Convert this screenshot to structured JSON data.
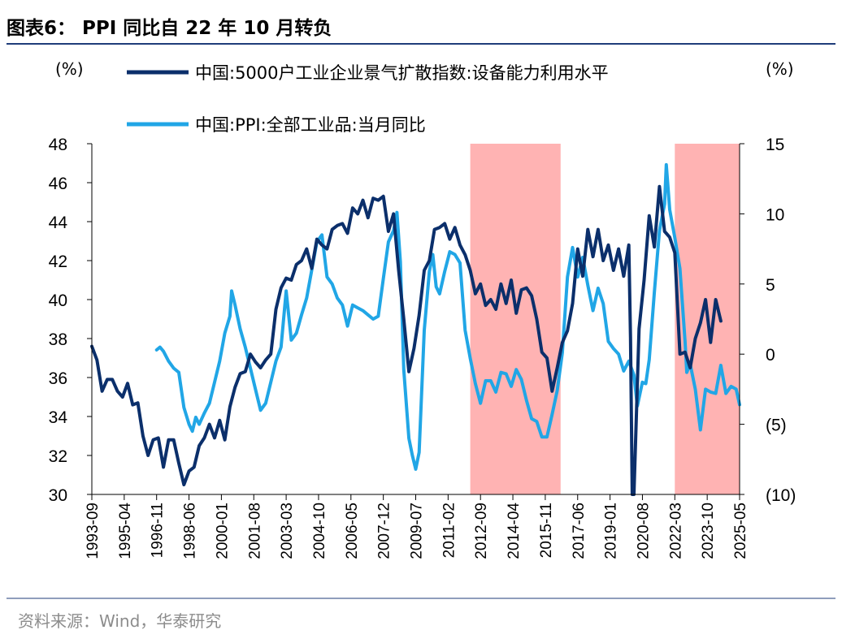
{
  "figure": {
    "title": "图表6： PPI 同比自 22 年 10 月转负",
    "source": "资料来源：Wind，华泰研究",
    "left_unit": "(%)",
    "right_unit": "(%)"
  },
  "colors": {
    "title_rule": "#1f3d7a",
    "series_capacity": "#0b2f6b",
    "series_ppi": "#21a6e6",
    "shade": "#ffb3b3",
    "axis": "#000000",
    "source_text": "#8c8c8c"
  },
  "chart_data": {
    "type": "line",
    "title": "图表6： PPI 同比自 22 年 10 月转负",
    "xlabel": "",
    "ylabel_left": "(%)",
    "ylabel_right": "(%)",
    "x_range": [
      "1993-09",
      "2025-05"
    ],
    "x_tick_labels": [
      "1993-09",
      "1995-04",
      "1996-11",
      "1998-06",
      "2000-01",
      "2001-08",
      "2003-03",
      "2004-10",
      "2006-05",
      "2007-12",
      "2009-07",
      "2011-02",
      "2012-09",
      "2014-04",
      "2015-11",
      "2017-06",
      "2019-01",
      "2020-08",
      "2022-03",
      "2023-10",
      "2025-05"
    ],
    "ylim_left": [
      30,
      48
    ],
    "left_ticks": [
      30,
      32,
      34,
      36,
      38,
      40,
      42,
      44,
      46,
      48
    ],
    "left_tick_labels": [
      "30",
      "32",
      "34",
      "36",
      "38",
      "40",
      "42",
      "44",
      "46",
      "48"
    ],
    "ylim_right": [
      -10,
      15
    ],
    "right_ticks": [
      -10,
      -5,
      0,
      5,
      10,
      15
    ],
    "right_tick_labels": [
      "(10)",
      "(5)",
      "0",
      "5",
      "10",
      "15"
    ],
    "grid": false,
    "legend_position": "top",
    "shaded_periods": [
      {
        "start": "2012-03",
        "end": "2016-08"
      },
      {
        "start": "2022-03",
        "end": "2025-05"
      }
    ],
    "series": [
      {
        "name": "中国:5000户工业企业景气扩散指数:设备能力利用水平",
        "axis": "left",
        "points": [
          [
            "1993-09",
            37.6
          ],
          [
            "1993-12",
            36.9
          ],
          [
            "1994-03",
            35.3
          ],
          [
            "1994-06",
            35.9
          ],
          [
            "1994-09",
            35.9
          ],
          [
            "1994-12",
            35.3
          ],
          [
            "1995-03",
            35.0
          ],
          [
            "1995-06",
            35.7
          ],
          [
            "1995-09",
            34.6
          ],
          [
            "1995-12",
            34.7
          ],
          [
            "1996-03",
            33.0
          ],
          [
            "1996-06",
            32.0
          ],
          [
            "1996-09",
            32.8
          ],
          [
            "1996-12",
            32.9
          ],
          [
            "1997-03",
            31.4
          ],
          [
            "1997-06",
            32.8
          ],
          [
            "1997-09",
            32.8
          ],
          [
            "1997-12",
            31.6
          ],
          [
            "1998-03",
            30.5
          ],
          [
            "1998-06",
            31.2
          ],
          [
            "1998-09",
            31.4
          ],
          [
            "1998-12",
            32.5
          ],
          [
            "1999-03",
            32.9
          ],
          [
            "1999-06",
            33.6
          ],
          [
            "1999-09",
            32.9
          ],
          [
            "1999-12",
            33.8
          ],
          [
            "2000-03",
            32.8
          ],
          [
            "2000-06",
            34.5
          ],
          [
            "2000-09",
            35.5
          ],
          [
            "2000-12",
            36.2
          ],
          [
            "2001-03",
            36.3
          ],
          [
            "2001-06",
            37.2
          ],
          [
            "2001-09",
            36.8
          ],
          [
            "2001-12",
            36.5
          ],
          [
            "2002-03",
            36.9
          ],
          [
            "2002-06",
            37.2
          ],
          [
            "2002-09",
            39.5
          ],
          [
            "2002-12",
            40.6
          ],
          [
            "2003-03",
            41.1
          ],
          [
            "2003-06",
            41.0
          ],
          [
            "2003-09",
            41.8
          ],
          [
            "2003-12",
            42.0
          ],
          [
            "2004-03",
            42.6
          ],
          [
            "2004-06",
            41.6
          ],
          [
            "2004-09",
            43.1
          ],
          [
            "2004-12",
            42.8
          ],
          [
            "2005-03",
            42.6
          ],
          [
            "2005-06",
            43.6
          ],
          [
            "2005-09",
            43.8
          ],
          [
            "2005-12",
            43.9
          ],
          [
            "2006-03",
            43.4
          ],
          [
            "2006-06",
            44.7
          ],
          [
            "2006-09",
            44.4
          ],
          [
            "2006-12",
            45.1
          ],
          [
            "2007-03",
            44.2
          ],
          [
            "2007-06",
            45.2
          ],
          [
            "2007-09",
            45.1
          ],
          [
            "2007-12",
            45.3
          ],
          [
            "2008-03",
            43.5
          ],
          [
            "2008-06",
            44.4
          ],
          [
            "2008-09",
            41.5
          ],
          [
            "2008-12",
            39.0
          ],
          [
            "2009-03",
            36.3
          ],
          [
            "2009-06",
            37.5
          ],
          [
            "2009-09",
            39.2
          ],
          [
            "2009-12",
            41.5
          ],
          [
            "2010-03",
            42.0
          ],
          [
            "2010-06",
            43.6
          ],
          [
            "2010-09",
            43.7
          ],
          [
            "2010-12",
            43.9
          ],
          [
            "2011-03",
            43.1
          ],
          [
            "2011-06",
            43.7
          ],
          [
            "2011-09",
            42.8
          ],
          [
            "2011-12",
            42.3
          ],
          [
            "2012-03",
            41.5
          ],
          [
            "2012-06",
            40.3
          ],
          [
            "2012-09",
            40.8
          ],
          [
            "2012-12",
            39.7
          ],
          [
            "2013-03",
            40.0
          ],
          [
            "2013-06",
            39.5
          ],
          [
            "2013-09",
            40.8
          ],
          [
            "2013-12",
            39.8
          ],
          [
            "2014-03",
            41.0
          ],
          [
            "2014-06",
            39.3
          ],
          [
            "2014-09",
            40.5
          ],
          [
            "2014-12",
            40.6
          ],
          [
            "2015-03",
            40.2
          ],
          [
            "2015-06",
            39.0
          ],
          [
            "2015-09",
            37.3
          ],
          [
            "2015-12",
            37.0
          ],
          [
            "2016-03",
            35.3
          ],
          [
            "2016-06",
            36.5
          ],
          [
            "2016-09",
            37.8
          ],
          [
            "2016-12",
            38.4
          ],
          [
            "2017-03",
            39.8
          ],
          [
            "2017-06",
            42.6
          ],
          [
            "2017-09",
            41.2
          ],
          [
            "2017-12",
            43.6
          ],
          [
            "2018-03",
            42.2
          ],
          [
            "2018-06",
            43.6
          ],
          [
            "2018-09",
            42.0
          ],
          [
            "2018-12",
            42.8
          ],
          [
            "2019-03",
            41.5
          ],
          [
            "2019-06",
            42.6
          ],
          [
            "2019-09",
            41.2
          ],
          [
            "2019-12",
            42.8
          ],
          [
            "2020-01",
            38.0
          ],
          [
            "2020-02",
            30.0
          ],
          [
            "2020-03",
            30.0
          ],
          [
            "2020-06",
            38.5
          ],
          [
            "2020-09",
            41.0
          ],
          [
            "2020-12",
            44.3
          ],
          [
            "2021-03",
            42.7
          ],
          [
            "2021-06",
            45.8
          ],
          [
            "2021-09",
            43.5
          ],
          [
            "2021-12",
            43.2
          ],
          [
            "2022-03",
            42.4
          ],
          [
            "2022-06",
            37.2
          ],
          [
            "2022-09",
            37.3
          ],
          [
            "2022-12",
            36.5
          ],
          [
            "2023-03",
            38.0
          ],
          [
            "2023-06",
            38.8
          ],
          [
            "2023-09",
            40.0
          ],
          [
            "2023-12",
            37.8
          ],
          [
            "2024-03",
            40.0
          ],
          [
            "2024-06",
            38.9
          ]
        ]
      },
      {
        "name": "中国:PPI:全部工业品:当月同比",
        "axis": "right",
        "points": [
          [
            "1996-11",
            0.3
          ],
          [
            "1997-01",
            0.5
          ],
          [
            "1997-03",
            0.2
          ],
          [
            "1997-06",
            -0.5
          ],
          [
            "1997-09",
            -1.0
          ],
          [
            "1997-12",
            -1.3
          ],
          [
            "1998-03",
            -3.8
          ],
          [
            "1998-06",
            -5.0
          ],
          [
            "1998-08",
            -5.5
          ],
          [
            "1998-10",
            -4.5
          ],
          [
            "1998-12",
            -5.0
          ],
          [
            "1999-03",
            -4.2
          ],
          [
            "1999-06",
            -3.5
          ],
          [
            "1999-09",
            -2.0
          ],
          [
            "1999-12",
            -0.5
          ],
          [
            "2000-03",
            1.5
          ],
          [
            "2000-06",
            2.7
          ],
          [
            "2000-07",
            4.5
          ],
          [
            "2000-09",
            3.5
          ],
          [
            "2000-12",
            1.8
          ],
          [
            "2001-03",
            0.5
          ],
          [
            "2001-06",
            -1.0
          ],
          [
            "2001-09",
            -2.5
          ],
          [
            "2001-12",
            -4.0
          ],
          [
            "2002-03",
            -3.5
          ],
          [
            "2002-06",
            -2.0
          ],
          [
            "2002-09",
            -0.5
          ],
          [
            "2002-12",
            0.5
          ],
          [
            "2003-03",
            4.5
          ],
          [
            "2003-06",
            1.0
          ],
          [
            "2003-09",
            1.5
          ],
          [
            "2003-12",
            2.8
          ],
          [
            "2004-03",
            4.0
          ],
          [
            "2004-06",
            6.0
          ],
          [
            "2004-09",
            8.0
          ],
          [
            "2004-12",
            8.5
          ],
          [
            "2005-03",
            5.5
          ],
          [
            "2005-06",
            5.0
          ],
          [
            "2005-09",
            4.0
          ],
          [
            "2005-12",
            3.5
          ],
          [
            "2006-03",
            2.0
          ],
          [
            "2006-06",
            3.5
          ],
          [
            "2006-09",
            3.3
          ],
          [
            "2006-12",
            3.1
          ],
          [
            "2007-03",
            2.8
          ],
          [
            "2007-06",
            2.5
          ],
          [
            "2007-09",
            2.7
          ],
          [
            "2007-12",
            5.4
          ],
          [
            "2008-03",
            8.0
          ],
          [
            "2008-06",
            8.8
          ],
          [
            "2008-08",
            10.1
          ],
          [
            "2008-10",
            6.6
          ],
          [
            "2008-12",
            -1.1
          ],
          [
            "2009-03",
            -6.0
          ],
          [
            "2009-05",
            -7.2
          ],
          [
            "2009-07",
            -8.2
          ],
          [
            "2009-09",
            -7.0
          ],
          [
            "2009-12",
            1.7
          ],
          [
            "2010-03",
            5.9
          ],
          [
            "2010-05",
            7.1
          ],
          [
            "2010-07",
            4.8
          ],
          [
            "2010-09",
            4.3
          ],
          [
            "2010-12",
            5.9
          ],
          [
            "2011-03",
            7.3
          ],
          [
            "2011-06",
            7.1
          ],
          [
            "2011-09",
            6.5
          ],
          [
            "2011-12",
            1.7
          ],
          [
            "2012-03",
            -0.3
          ],
          [
            "2012-06",
            -2.1
          ],
          [
            "2012-09",
            -3.5
          ],
          [
            "2012-12",
            -1.9
          ],
          [
            "2013-03",
            -1.9
          ],
          [
            "2013-06",
            -2.7
          ],
          [
            "2013-09",
            -1.3
          ],
          [
            "2013-12",
            -1.4
          ],
          [
            "2014-03",
            -2.3
          ],
          [
            "2014-06",
            -1.1
          ],
          [
            "2014-09",
            -1.8
          ],
          [
            "2014-12",
            -3.3
          ],
          [
            "2015-03",
            -4.6
          ],
          [
            "2015-06",
            -4.8
          ],
          [
            "2015-09",
            -5.9
          ],
          [
            "2015-12",
            -5.9
          ],
          [
            "2016-03",
            -4.3
          ],
          [
            "2016-06",
            -2.6
          ],
          [
            "2016-09",
            0.1
          ],
          [
            "2016-12",
            5.5
          ],
          [
            "2017-03",
            7.6
          ],
          [
            "2017-06",
            5.5
          ],
          [
            "2017-09",
            6.9
          ],
          [
            "2017-12",
            4.9
          ],
          [
            "2018-03",
            3.1
          ],
          [
            "2018-06",
            4.7
          ],
          [
            "2018-09",
            3.6
          ],
          [
            "2018-12",
            0.9
          ],
          [
            "2019-03",
            0.4
          ],
          [
            "2019-06",
            0.0
          ],
          [
            "2019-09",
            -1.2
          ],
          [
            "2019-12",
            -0.5
          ],
          [
            "2020-03",
            -1.5
          ],
          [
            "2020-05",
            -3.7
          ],
          [
            "2020-08",
            -2.0
          ],
          [
            "2020-10",
            -2.1
          ],
          [
            "2020-12",
            -0.4
          ],
          [
            "2021-03",
            4.4
          ],
          [
            "2021-06",
            8.8
          ],
          [
            "2021-09",
            10.7
          ],
          [
            "2021-10",
            13.5
          ],
          [
            "2021-12",
            10.3
          ],
          [
            "2022-03",
            8.3
          ],
          [
            "2022-06",
            6.1
          ],
          [
            "2022-09",
            0.9
          ],
          [
            "2022-10",
            -1.3
          ],
          [
            "2022-12",
            -0.7
          ],
          [
            "2023-03",
            -2.5
          ],
          [
            "2023-06",
            -5.4
          ],
          [
            "2023-09",
            -2.5
          ],
          [
            "2023-12",
            -2.7
          ],
          [
            "2024-03",
            -2.8
          ],
          [
            "2024-06",
            -0.8
          ],
          [
            "2024-09",
            -2.8
          ],
          [
            "2024-12",
            -2.3
          ],
          [
            "2025-03",
            -2.5
          ],
          [
            "2025-05",
            -3.6
          ]
        ]
      }
    ]
  }
}
